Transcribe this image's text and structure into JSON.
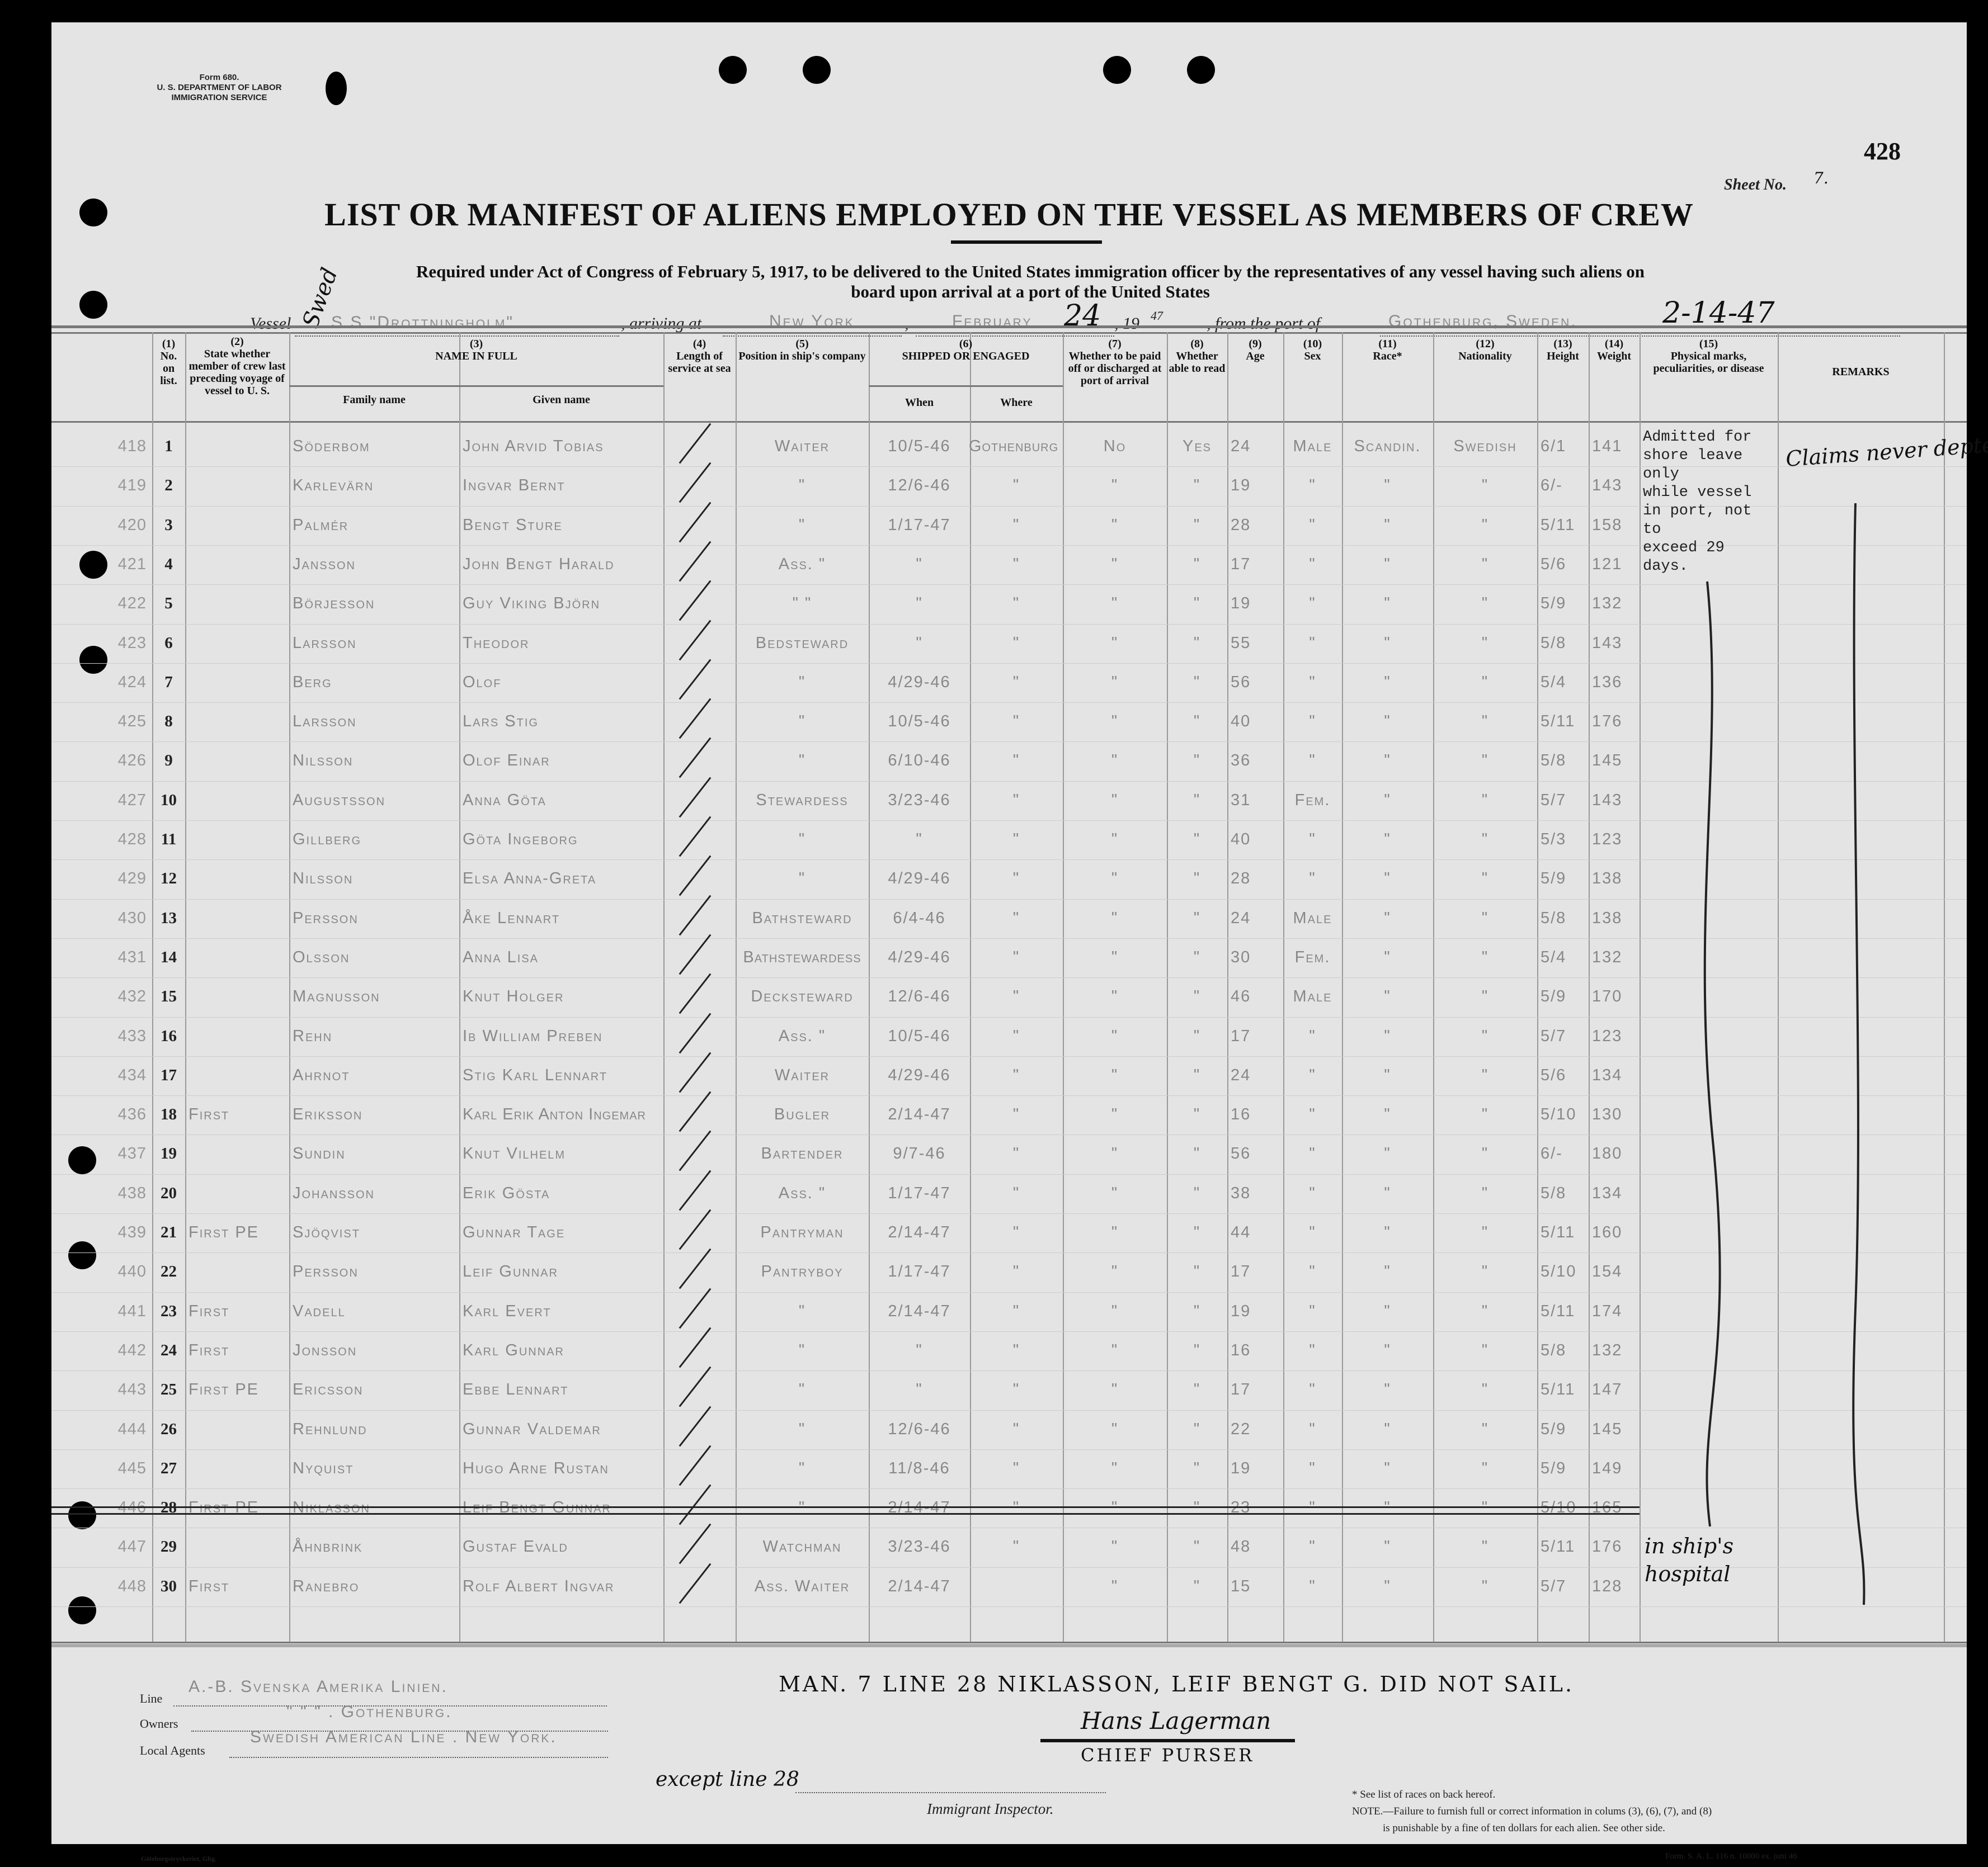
{
  "form": {
    "number": "Form 680.",
    "dept": "U. S. DEPARTMENT OF LABOR",
    "service": "IMMIGRATION SERVICE"
  },
  "page_number": "428",
  "sheet": {
    "label": "Sheet No.",
    "value": "7."
  },
  "title": "LIST OR MANIFEST OF ALIENS EMPLOYED ON THE VESSEL AS MEMBERS OF CREW",
  "subtitle_1": "Required under Act of Congress of February 5, 1917, to be delivered to the United States immigration officer by the representatives of any vessel having such aliens on",
  "subtitle_2": "board upon arrival at a port of the United States",
  "voyage": {
    "vessel_label": "Vessel",
    "vessel": "S S \"Drottningholm\"",
    "vessel_hand": "Swed",
    "arriving_label": ", arriving at",
    "arriving": "New York",
    "month": "February",
    "day": "24",
    "year_prefix": ", 19",
    "year": "47",
    "from_label": ", from the port of",
    "port": "Gothenburg, Sweden.",
    "date_hand": "2-14-47"
  },
  "columns": {
    "c1": "(1)\nNo.\non\nlist.",
    "c2": "(2)\nState whether member of crew last preceding voyage of vessel to U. S.",
    "c3": "(3)\nNAME IN FULL",
    "c3a": "Family name",
    "c3b": "Given name",
    "c4": "(4)\nLength of service at sea",
    "c5": "(5)\nPosition in ship's company",
    "c6": "(6)\nSHIPPED OR ENGAGED",
    "c6a": "When",
    "c6b": "Where",
    "c7": "(7)\nWhether to be paid off or discharged at port of arrival",
    "c8": "(8)\nWhether able to read",
    "c9": "(9)\nAge",
    "c10": "(10)\nSex",
    "c11": "(11)\nRace*",
    "c12": "(12)\nNationality",
    "c13": "(13)\nHeight",
    "c14": "(14)\nWeight",
    "c15": "(15)\nPhysical marks, peculiarities, or disease",
    "c16": "REMARKS"
  },
  "shore_leave_note": "Admitted for shore leave only\nwhile vessel in port, not to\nexceed 29 days.",
  "remarks_hand": "Claims never depted",
  "hospital_hand": "in ship's hospital",
  "rows": [
    {
      "ref": "418",
      "no": "1",
      "prev": "",
      "family": "Söderbom",
      "given": "John Arvid Tobias",
      "position": "Waiter",
      "when": "10/5-46",
      "where": "Gothenburg",
      "paid": "No",
      "read": "Yes",
      "age": "24",
      "sex": "Male",
      "race": "Scandin.",
      "nat": "Swedish",
      "height": "6/1",
      "weight": "141"
    },
    {
      "ref": "419",
      "no": "2",
      "prev": "",
      "family": "Karlevärn",
      "given": "Ingvar Bernt",
      "position": "\"",
      "when": "12/6-46",
      "where": "\"",
      "paid": "\"",
      "read": "\"",
      "age": "19",
      "sex": "\"",
      "race": "\"",
      "nat": "\"",
      "height": "6/-",
      "weight": "143"
    },
    {
      "ref": "420",
      "no": "3",
      "prev": "",
      "family": "Palmér",
      "given": "Bengt Sture",
      "position": "\"",
      "when": "1/17-47",
      "where": "\"",
      "paid": "\"",
      "read": "\"",
      "age": "28",
      "sex": "\"",
      "race": "\"",
      "nat": "\"",
      "height": "5/11",
      "weight": "158"
    },
    {
      "ref": "421",
      "no": "4",
      "prev": "",
      "family": "Jansson",
      "given": "John Bengt Harald",
      "position": "Ass. \"",
      "when": "\"",
      "where": "\"",
      "paid": "\"",
      "read": "\"",
      "age": "17",
      "sex": "\"",
      "race": "\"",
      "nat": "\"",
      "height": "5/6",
      "weight": "121"
    },
    {
      "ref": "422",
      "no": "5",
      "prev": "",
      "family": "Börjesson",
      "given": "Guy Viking Björn",
      "position": "\" \"",
      "when": "\"",
      "where": "\"",
      "paid": "\"",
      "read": "\"",
      "age": "19",
      "sex": "\"",
      "race": "\"",
      "nat": "\"",
      "height": "5/9",
      "weight": "132"
    },
    {
      "ref": "423",
      "no": "6",
      "prev": "",
      "family": "Larsson",
      "given": "Theodor",
      "position": "Bedsteward",
      "when": "\"",
      "where": "\"",
      "paid": "\"",
      "read": "\"",
      "age": "55",
      "sex": "\"",
      "race": "\"",
      "nat": "\"",
      "height": "5/8",
      "weight": "143"
    },
    {
      "ref": "424",
      "no": "7",
      "prev": "",
      "family": "Berg",
      "given": "Olof",
      "position": "\"",
      "when": "4/29-46",
      "where": "\"",
      "paid": "\"",
      "read": "\"",
      "age": "56",
      "sex": "\"",
      "race": "\"",
      "nat": "\"",
      "height": "5/4",
      "weight": "136"
    },
    {
      "ref": "425",
      "no": "8",
      "prev": "",
      "family": "Larsson",
      "given": "Lars Stig",
      "position": "\"",
      "when": "10/5-46",
      "where": "\"",
      "paid": "\"",
      "read": "\"",
      "age": "40",
      "sex": "\"",
      "race": "\"",
      "nat": "\"",
      "height": "5/11",
      "weight": "176"
    },
    {
      "ref": "426",
      "no": "9",
      "prev": "",
      "family": "Nilsson",
      "given": "Olof Einar",
      "position": "\"",
      "when": "6/10-46",
      "where": "\"",
      "paid": "\"",
      "read": "\"",
      "age": "36",
      "sex": "\"",
      "race": "\"",
      "nat": "\"",
      "height": "5/8",
      "weight": "145"
    },
    {
      "ref": "427",
      "no": "10",
      "prev": "",
      "family": "Augustsson",
      "given": "Anna Göta",
      "position": "Stewardess",
      "when": "3/23-46",
      "where": "\"",
      "paid": "\"",
      "read": "\"",
      "age": "31",
      "sex": "Fem.",
      "race": "\"",
      "nat": "\"",
      "height": "5/7",
      "weight": "143"
    },
    {
      "ref": "428",
      "no": "11",
      "prev": "",
      "family": "Gillberg",
      "given": "Göta Ingeborg",
      "position": "\"",
      "when": "\"",
      "where": "\"",
      "paid": "\"",
      "read": "\"",
      "age": "40",
      "sex": "\"",
      "race": "\"",
      "nat": "\"",
      "height": "5/3",
      "weight": "123"
    },
    {
      "ref": "429",
      "no": "12",
      "prev": "",
      "family": "Nilsson",
      "given": "Elsa Anna-Greta",
      "position": "\"",
      "when": "4/29-46",
      "where": "\"",
      "paid": "\"",
      "read": "\"",
      "age": "28",
      "sex": "\"",
      "race": "\"",
      "nat": "\"",
      "height": "5/9",
      "weight": "138"
    },
    {
      "ref": "430",
      "no": "13",
      "prev": "",
      "family": "Persson",
      "given": "Åke Lennart",
      "position": "Bathsteward",
      "when": "6/4-46",
      "where": "\"",
      "paid": "\"",
      "read": "\"",
      "age": "24",
      "sex": "Male",
      "race": "\"",
      "nat": "\"",
      "height": "5/8",
      "weight": "138"
    },
    {
      "ref": "431",
      "no": "14",
      "prev": "",
      "family": "Olsson",
      "given": "Anna Lisa",
      "position": "Bathstewardess",
      "when": "4/29-46",
      "where": "\"",
      "paid": "\"",
      "read": "\"",
      "age": "30",
      "sex": "Fem.",
      "race": "\"",
      "nat": "\"",
      "height": "5/4",
      "weight": "132"
    },
    {
      "ref": "432",
      "no": "15",
      "prev": "",
      "family": "Magnusson",
      "given": "Knut Holger",
      "position": "Decksteward",
      "when": "12/6-46",
      "where": "\"",
      "paid": "\"",
      "read": "\"",
      "age": "46",
      "sex": "Male",
      "race": "\"",
      "nat": "\"",
      "height": "5/9",
      "weight": "170"
    },
    {
      "ref": "433",
      "no": "16",
      "prev": "",
      "family": "Rehn",
      "given": "Ib William Preben",
      "position": "Ass. \"",
      "when": "10/5-46",
      "where": "\"",
      "paid": "\"",
      "read": "\"",
      "age": "17",
      "sex": "\"",
      "race": "\"",
      "nat": "\"",
      "height": "5/7",
      "weight": "123"
    },
    {
      "ref": "434",
      "no": "17",
      "prev": "",
      "family": "Ahrnot",
      "given": "Stig Karl Lennart",
      "position": "Waiter",
      "when": "4/29-46",
      "where": "\"",
      "paid": "\"",
      "read": "\"",
      "age": "24",
      "sex": "\"",
      "race": "\"",
      "nat": "\"",
      "height": "5/6",
      "weight": "134"
    },
    {
      "ref": "436",
      "no": "18",
      "prev": "First",
      "family": "Eriksson",
      "given": "Karl Erik Anton Ingemar",
      "position": "Bugler",
      "when": "2/14-47",
      "where": "\"",
      "paid": "\"",
      "read": "\"",
      "age": "16",
      "sex": "\"",
      "race": "\"",
      "nat": "\"",
      "height": "5/10",
      "weight": "130"
    },
    {
      "ref": "437",
      "no": "19",
      "prev": "",
      "family": "Sundin",
      "given": "Knut Vilhelm",
      "position": "Bartender",
      "when": "9/7-46",
      "where": "\"",
      "paid": "\"",
      "read": "\"",
      "age": "56",
      "sex": "\"",
      "race": "\"",
      "nat": "\"",
      "height": "6/-",
      "weight": "180"
    },
    {
      "ref": "438",
      "no": "20",
      "prev": "",
      "family": "Johansson",
      "given": "Erik Gösta",
      "position": "Ass. \"",
      "when": "1/17-47",
      "where": "\"",
      "paid": "\"",
      "read": "\"",
      "age": "38",
      "sex": "\"",
      "race": "\"",
      "nat": "\"",
      "height": "5/8",
      "weight": "134"
    },
    {
      "ref": "439",
      "no": "21",
      "prev": "First PE",
      "family": "Sjöqvist",
      "given": "Gunnar Tage",
      "position": "Pantryman",
      "when": "2/14-47",
      "where": "\"",
      "paid": "\"",
      "read": "\"",
      "age": "44",
      "sex": "\"",
      "race": "\"",
      "nat": "\"",
      "height": "5/11",
      "weight": "160"
    },
    {
      "ref": "440",
      "no": "22",
      "prev": "",
      "family": "Persson",
      "given": "Leif Gunnar",
      "position": "Pantryboy",
      "when": "1/17-47",
      "where": "\"",
      "paid": "\"",
      "read": "\"",
      "age": "17",
      "sex": "\"",
      "race": "\"",
      "nat": "\"",
      "height": "5/10",
      "weight": "154"
    },
    {
      "ref": "441",
      "no": "23",
      "prev": "First",
      "family": "Vadell",
      "given": "Karl Evert",
      "position": "\"",
      "when": "2/14-47",
      "where": "\"",
      "paid": "\"",
      "read": "\"",
      "age": "19",
      "sex": "\"",
      "race": "\"",
      "nat": "\"",
      "height": "5/11",
      "weight": "174"
    },
    {
      "ref": "442",
      "no": "24",
      "prev": "First",
      "family": "Jonsson",
      "given": "Karl Gunnar",
      "position": "\"",
      "when": "\"",
      "where": "\"",
      "paid": "\"",
      "read": "\"",
      "age": "16",
      "sex": "\"",
      "race": "\"",
      "nat": "\"",
      "height": "5/8",
      "weight": "132"
    },
    {
      "ref": "443",
      "no": "25",
      "prev": "First PE",
      "family": "Ericsson",
      "given": "Ebbe Lennart",
      "position": "\"",
      "when": "\"",
      "where": "\"",
      "paid": "\"",
      "read": "\"",
      "age": "17",
      "sex": "\"",
      "race": "\"",
      "nat": "\"",
      "height": "5/11",
      "weight": "147"
    },
    {
      "ref": "444",
      "no": "26",
      "prev": "",
      "family": "Rehnlund",
      "given": "Gunnar Valdemar",
      "position": "\"",
      "when": "12/6-46",
      "where": "\"",
      "paid": "\"",
      "read": "\"",
      "age": "22",
      "sex": "\"",
      "race": "\"",
      "nat": "\"",
      "height": "5/9",
      "weight": "145"
    },
    {
      "ref": "445",
      "no": "27",
      "prev": "",
      "family": "Nyquist",
      "given": "Hugo Arne Rustan",
      "position": "\"",
      "when": "11/8-46",
      "where": "\"",
      "paid": "\"",
      "read": "\"",
      "age": "19",
      "sex": "\"",
      "race": "\"",
      "nat": "\"",
      "height": "5/9",
      "weight": "149"
    },
    {
      "ref": "446",
      "no": "28",
      "prev": "First PE",
      "family": "Niklasson",
      "given": "Leif Bengt Gunnar",
      "position": "\"",
      "when": "2/14-47",
      "where": "\"",
      "paid": "\"",
      "read": "\"",
      "age": "23",
      "sex": "\"",
      "race": "\"",
      "nat": "\"",
      "height": "5/10",
      "weight": "165",
      "struck": true
    },
    {
      "ref": "447",
      "no": "29",
      "prev": "",
      "family": "Åhnbrink",
      "given": "Gustaf Evald",
      "position": "Watchman",
      "when": "3/23-46",
      "where": "\"",
      "paid": "\"",
      "read": "\"",
      "age": "48",
      "sex": "\"",
      "race": "\"",
      "nat": "\"",
      "height": "5/11",
      "weight": "176"
    },
    {
      "ref": "448",
      "no": "30",
      "prev": "First",
      "family": "Ranebro",
      "given": "Rolf Albert Ingvar",
      "position": "Ass. Waiter",
      "when": "2/14-47",
      "where": "",
      "paid": "\"",
      "read": "\"",
      "age": "15",
      "sex": "\"",
      "race": "\"",
      "nat": "\"",
      "height": "5/7",
      "weight": "128"
    }
  ],
  "footer": {
    "line_label": "Line",
    "line": "A.-B. Svenska Amerika Linien.",
    "owners_label": "Owners",
    "owners": "\"   \"   \" . Gothenburg.",
    "agents_label": "Local Agents",
    "agents": "Swedish American Line . New York.",
    "hand_note": "Man. 7 Line 28 Niklasson, Leif Bengt G. Did not sail.",
    "signature": "Hans Lagerman",
    "purser": "Chief Purser",
    "inspector_hand": "except line 28",
    "inspector_label": "Immigrant Inspector.",
    "races_note": "* See list of races on back hereof.",
    "note": "NOTE.—Failure to furnish full or correct information in colums (3), (6), (7), and (8)",
    "note2": "is punishable by a fine of ten dollars for each alien.  See other side.",
    "printer": "Göteborgstryckeriet, Gbg.",
    "form_footer": "Form. S. A. L. 116 n. 10000 ex. juni 46"
  }
}
